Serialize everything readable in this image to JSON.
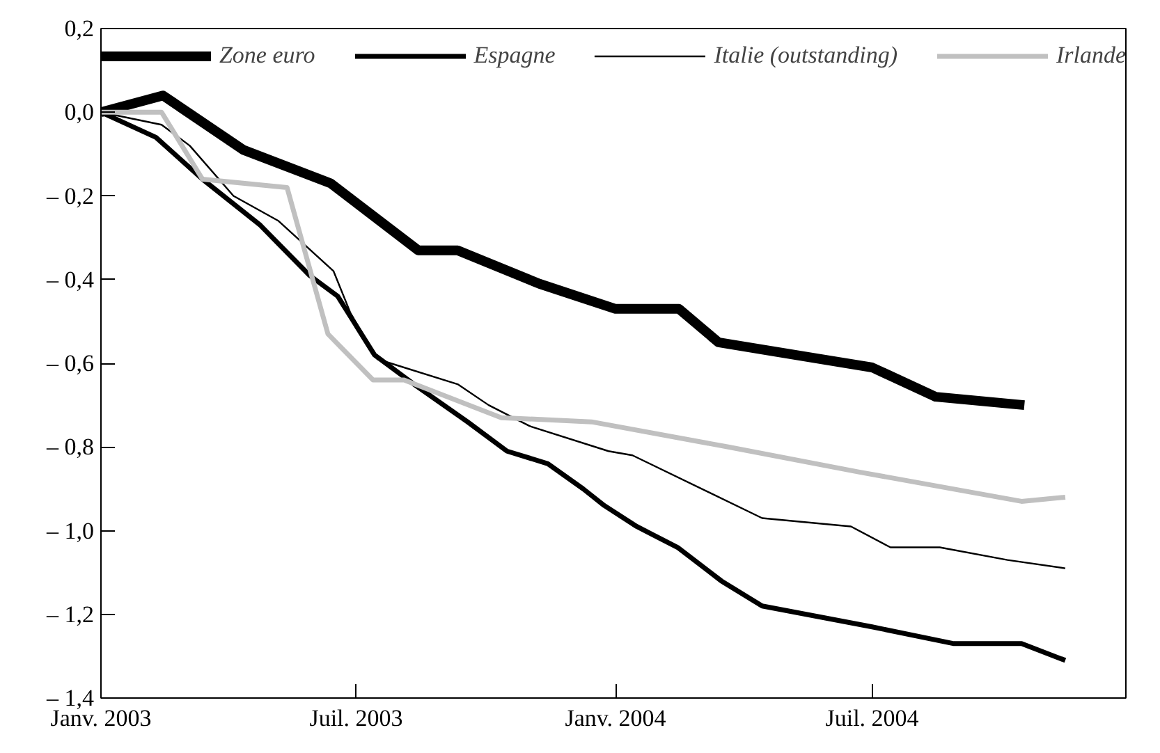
{
  "chart_data": {
    "type": "line",
    "xlim": [
      "2003-01-01",
      "2004-12-28"
    ],
    "xticks": [
      {
        "value": "2003-01-01",
        "label": "Janv. 2003"
      },
      {
        "value": "2003-07-01",
        "label": "Juil. 2003"
      },
      {
        "value": "2004-01-01",
        "label": "Janv. 2004"
      },
      {
        "value": "2004-07-01",
        "label": "Juil. 2004"
      }
    ],
    "ylim": [
      -1.4,
      0.2
    ],
    "yticks": [
      {
        "value": 0.2,
        "label": "0,2"
      },
      {
        "value": 0,
        "label": "0,0"
      },
      {
        "value": -0.2,
        "label": "– 0,2"
      },
      {
        "value": -0.4,
        "label": "– 0,4"
      },
      {
        "value": -0.6,
        "label": "– 0,6"
      },
      {
        "value": -0.8,
        "label": "– 0,8"
      },
      {
        "value": -1.0,
        "label": "– 1,0"
      },
      {
        "value": -1.2,
        "label": "– 1,2"
      },
      {
        "value": -1.4,
        "label": "– 1,4"
      }
    ],
    "grid": false,
    "legend": "top",
    "marker": "none",
    "line_style": "solid",
    "series": [
      {
        "name": "Zone euro",
        "color": "#000000",
        "x": [
          "2003-01-01",
          "2003-02-14",
          "2003-04-12",
          "2003-06-13",
          "2003-08-14",
          "2003-09-11",
          "2003-11-08",
          "2004-01-01",
          "2004-02-15",
          "2004-03-14",
          "2004-07-01",
          "2004-08-15",
          "2004-10-17"
        ],
        "values": [
          0,
          0.04,
          -0.09,
          -0.17,
          -0.33,
          -0.33,
          -0.41,
          -0.47,
          -0.47,
          -0.55,
          -0.61,
          -0.68,
          -0.7
        ]
      },
      {
        "name": "Espagne",
        "color": "#000000",
        "x": [
          "2003-01-01",
          "2003-02-09",
          "2003-03-14",
          "2003-04-24",
          "2003-05-29",
          "2003-06-18",
          "2003-07-14",
          "2003-08-11",
          "2003-09-18",
          "2003-10-16",
          "2003-11-14",
          "2003-12-09",
          "2003-12-24",
          "2004-01-16",
          "2004-02-14",
          "2004-03-16",
          "2004-04-14",
          "2004-07-01",
          "2004-08-28",
          "2004-10-15",
          "2004-11-15"
        ],
        "values": [
          0,
          -0.06,
          -0.16,
          -0.27,
          -0.39,
          -0.44,
          -0.58,
          -0.65,
          -0.74,
          -0.81,
          -0.84,
          -0.9,
          -0.94,
          -0.99,
          -1.04,
          -1.12,
          -1.18,
          -1.23,
          -1.27,
          -1.27,
          -1.31
        ]
      },
      {
        "name": "Italie (outstanding)",
        "color": "#000000",
        "x": [
          "2003-01-01",
          "2003-02-13",
          "2003-03-05",
          "2003-04-05",
          "2003-05-07",
          "2003-06-15",
          "2003-06-27",
          "2003-07-16",
          "2003-09-11",
          "2003-10-03",
          "2003-11-01",
          "2003-12-27",
          "2004-01-13",
          "2004-04-14",
          "2004-06-16",
          "2004-07-14",
          "2004-08-18",
          "2004-10-05",
          "2004-11-15"
        ],
        "values": [
          0,
          -0.03,
          -0.08,
          -0.2,
          -0.26,
          -0.38,
          -0.48,
          -0.59,
          -0.65,
          -0.7,
          -0.75,
          -0.81,
          -0.82,
          -0.97,
          -0.99,
          -1.04,
          -1.04,
          -1.07,
          -1.09
        ]
      },
      {
        "name": "Irlande",
        "color": "#c0c0c0",
        "x": [
          "2003-01-01",
          "2003-02-13",
          "2003-03-14",
          "2003-05-13",
          "2003-06-11",
          "2003-07-13",
          "2003-08-04",
          "2003-10-12",
          "2003-12-15",
          "2004-03-21",
          "2004-06-22",
          "2004-10-15",
          "2004-11-15"
        ],
        "values": [
          0,
          0,
          -0.16,
          -0.18,
          -0.53,
          -0.64,
          -0.64,
          -0.73,
          -0.74,
          -0.8,
          -0.86,
          -0.93,
          -0.92
        ]
      }
    ]
  }
}
